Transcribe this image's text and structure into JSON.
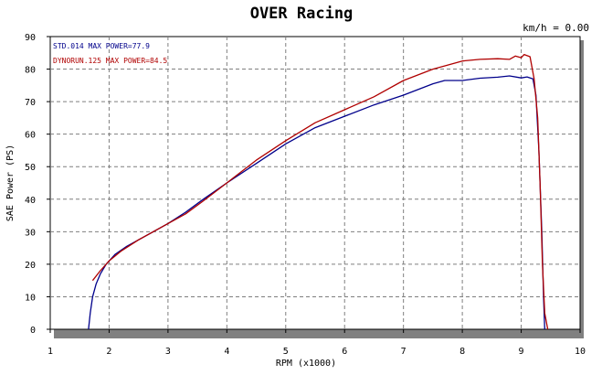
{
  "chart_data": {
    "type": "line",
    "title": "OVER Racing",
    "corner_label": "km/h = 0.00",
    "xlabel": "RPM (x1000)",
    "ylabel": "SAE Power (PS)",
    "xlim": [
      1,
      10
    ],
    "ylim": [
      0,
      90
    ],
    "xticks": [
      1,
      2,
      3,
      4,
      5,
      6,
      7,
      8,
      9,
      10
    ],
    "yticks": [
      0,
      10,
      20,
      30,
      40,
      50,
      60,
      70,
      80,
      90
    ],
    "grid": true,
    "legend_position": "top-left",
    "series": [
      {
        "name": "STD.014",
        "legend_text": "STD.014  MAX POWER=77.9",
        "max_power": "77.9",
        "color": "#00008b",
        "x": [
          1.65,
          1.68,
          1.72,
          1.78,
          1.85,
          1.95,
          2.1,
          2.3,
          2.5,
          2.8,
          3.0,
          3.3,
          3.6,
          4.0,
          4.5,
          5.0,
          5.5,
          6.0,
          6.5,
          7.0,
          7.5,
          7.7,
          8.0,
          8.3,
          8.6,
          8.8,
          9.0,
          9.1,
          9.2,
          9.25,
          9.3,
          9.35,
          9.38,
          9.4
        ],
        "y": [
          0,
          5,
          10,
          14,
          17,
          20,
          23,
          25.5,
          27.5,
          30.5,
          32.5,
          36,
          40,
          45,
          51,
          57,
          62,
          65.5,
          69,
          72,
          75.5,
          76.5,
          76.5,
          77.2,
          77.5,
          77.9,
          77.3,
          77.6,
          77.0,
          72,
          55,
          30,
          10,
          0
        ]
      },
      {
        "name": "DYNORUN.125",
        "legend_text": "DYNORUN.125  MAX POWER=84.5",
        "max_power": "84.5",
        "color": "#b00000",
        "x": [
          1.72,
          1.85,
          2.0,
          2.2,
          2.5,
          2.8,
          3.0,
          3.3,
          3.6,
          4.0,
          4.5,
          5.0,
          5.5,
          6.0,
          6.5,
          7.0,
          7.5,
          8.0,
          8.3,
          8.6,
          8.8,
          8.9,
          9.0,
          9.05,
          9.15,
          9.22,
          9.28,
          9.32,
          9.36,
          9.4,
          9.45
        ],
        "y": [
          15,
          18,
          21,
          24,
          27.5,
          30.5,
          32.5,
          35.5,
          39.5,
          45,
          52,
          58,
          63.5,
          67.5,
          71.5,
          76.5,
          80,
          82.5,
          83,
          83.2,
          83.0,
          84.0,
          83.5,
          84.5,
          83.8,
          77,
          65,
          45,
          20,
          5,
          0
        ]
      }
    ]
  }
}
